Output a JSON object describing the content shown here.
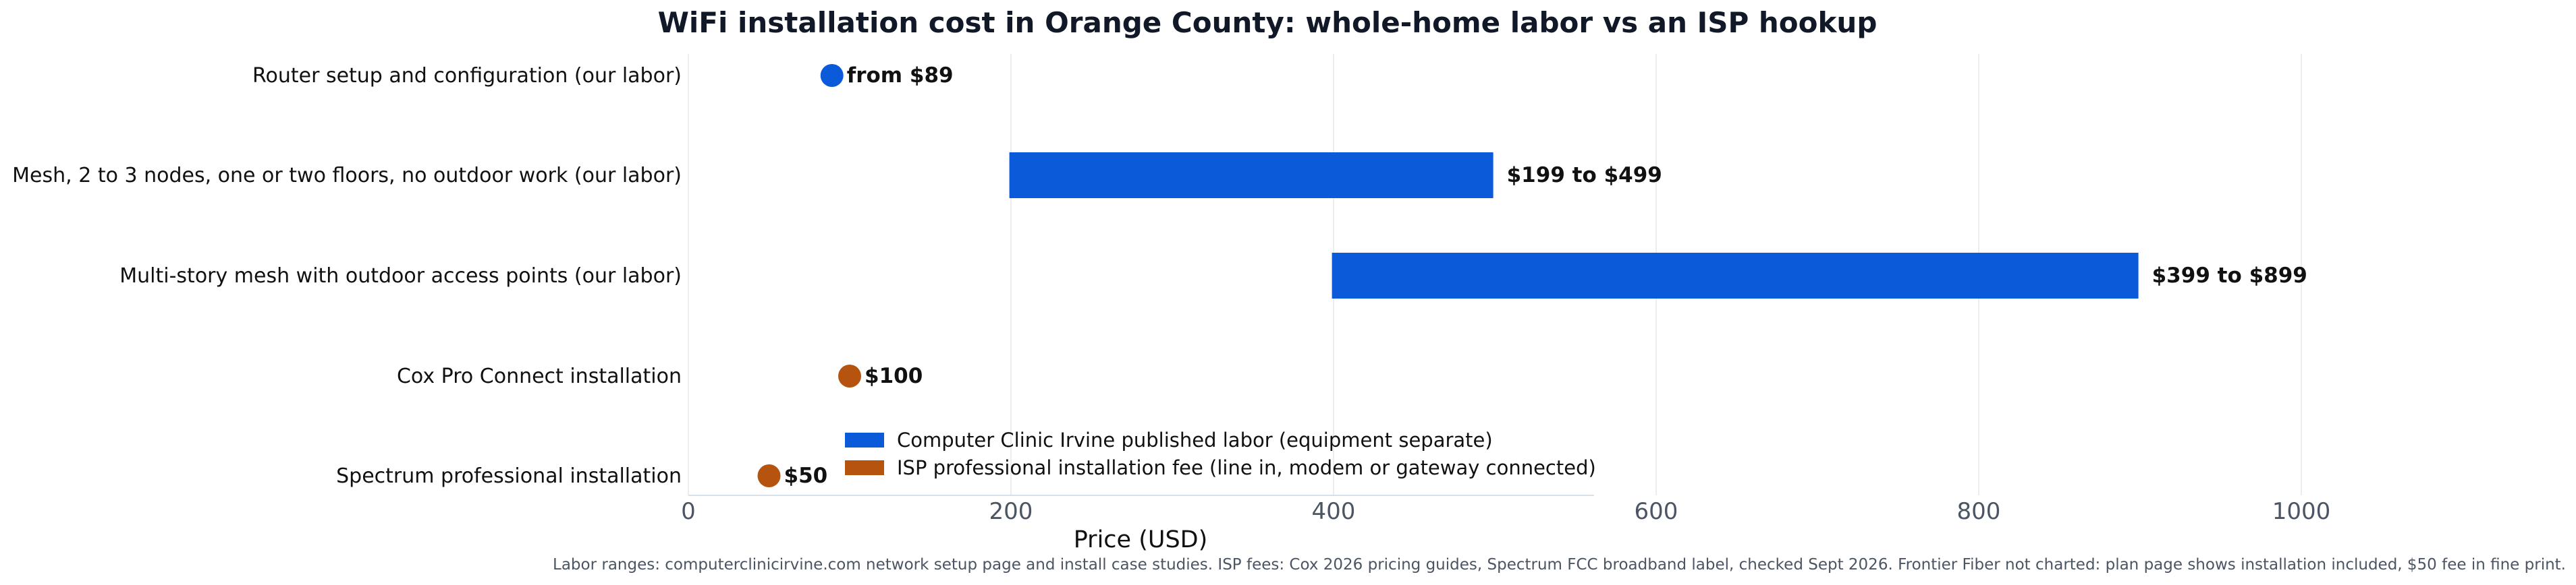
{
  "chart_data": {
    "type": "bar",
    "orientation": "horizontal",
    "title": "WiFi installation cost in Orange County: whole-home labor vs an ISP hookup",
    "xlabel": "Price (USD)",
    "ylabel": "",
    "xlim": [
      0,
      1120
    ],
    "xticks": [
      0,
      200,
      400,
      600,
      800,
      1000
    ],
    "grid": "vertical",
    "categories": [
      "Router setup and configuration (our labor)",
      "Mesh, 2 to 3 nodes, one or two floors, no outdoor work (our labor)",
      "Multi-story mesh with outdoor access points (our labor)",
      "Cox Pro Connect installation",
      "Spectrum professional installation"
    ],
    "items": [
      {
        "kind": "point",
        "low": 89,
        "high": 89,
        "group": "labor",
        "label": "from $89"
      },
      {
        "kind": "range",
        "low": 199,
        "high": 499,
        "group": "labor",
        "label": "$199 to $499"
      },
      {
        "kind": "range",
        "low": 399,
        "high": 899,
        "group": "labor",
        "label": "$399 to $899"
      },
      {
        "kind": "point",
        "low": 100,
        "high": 100,
        "group": "isp",
        "label": "$100"
      },
      {
        "kind": "point",
        "low": 50,
        "high": 50,
        "group": "isp",
        "label": "$50"
      }
    ],
    "series": [
      {
        "key": "labor",
        "name": "Computer Clinic Irvine published labor (equipment separate)",
        "color": "#0b5ad9"
      },
      {
        "key": "isp",
        "name": "ISP professional installation fee (line in, modem or gateway connected)",
        "color": "#b5530f"
      }
    ],
    "legend_position": "lower-right",
    "footnote": "Labor ranges: computerclinicirvine.com network setup page and install case studies. ISP fees: Cox 2026 pricing guides, Spectrum FCC broadband label, checked Sept 2026. Frontier Fiber not charted: plan page shows installation included, $50 fee in fine print."
  }
}
